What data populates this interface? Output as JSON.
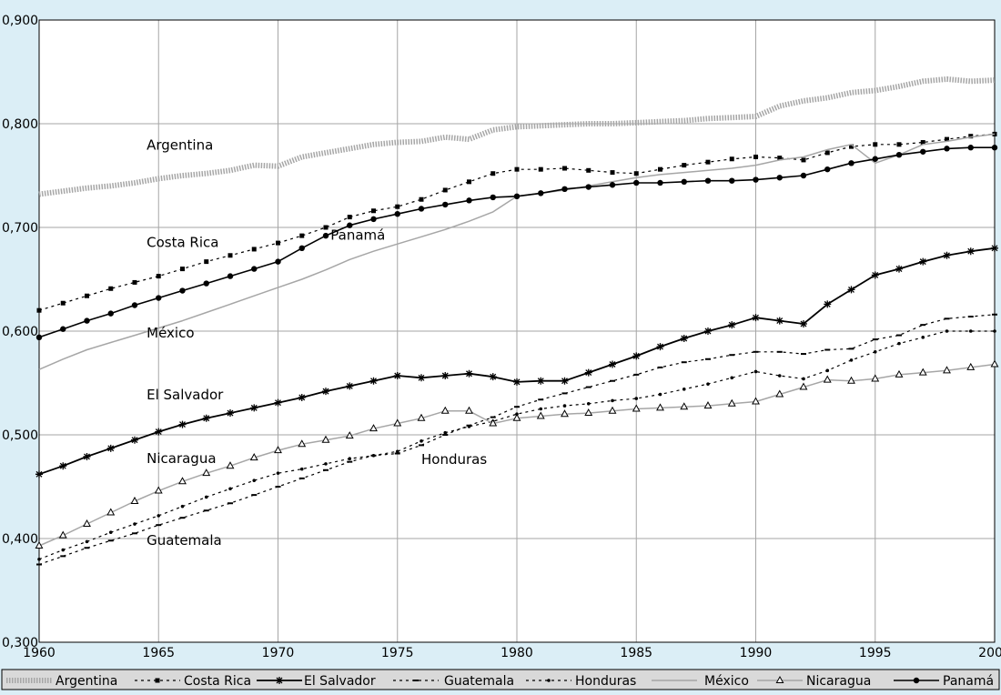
{
  "chart_data": {
    "type": "line",
    "title": "",
    "xlabel": "",
    "ylabel": "",
    "xlim": [
      1960,
      2000
    ],
    "ylim": [
      0.3,
      0.9
    ],
    "x_ticks": [
      1960,
      1965,
      1970,
      1975,
      1980,
      1985,
      1990,
      1995,
      2000
    ],
    "x_tick_labels": [
      "1960",
      "1965",
      "1970",
      "1975",
      "1980",
      "1985",
      "1990",
      "1995",
      "2000"
    ],
    "y_ticks": [
      0.3,
      0.4,
      0.5,
      0.6,
      0.7,
      0.8,
      0.9
    ],
    "y_tick_labels": [
      "0,300",
      "0,400",
      "0,500",
      "0,600",
      "0,700",
      "0,800",
      "0,900"
    ],
    "grid": true,
    "legend_position": "bottom",
    "x": [
      1960,
      1961,
      1962,
      1963,
      1964,
      1965,
      1966,
      1967,
      1968,
      1969,
      1970,
      1971,
      1972,
      1973,
      1974,
      1975,
      1976,
      1977,
      1978,
      1979,
      1980,
      1981,
      1982,
      1983,
      1984,
      1985,
      1986,
      1987,
      1988,
      1989,
      1990,
      1991,
      1992,
      1993,
      1994,
      1995,
      1996,
      1997,
      1998,
      1999,
      2000
    ],
    "series": [
      {
        "name": "Argentina",
        "style": "argentina",
        "color": "#a6a6a6",
        "values": [
          0.732,
          0.735,
          0.738,
          0.74,
          0.743,
          0.747,
          0.75,
          0.752,
          0.755,
          0.76,
          0.759,
          0.768,
          0.772,
          0.776,
          0.78,
          0.782,
          0.783,
          0.787,
          0.785,
          0.794,
          0.797,
          0.798,
          0.799,
          0.8,
          0.8,
          0.801,
          0.802,
          0.803,
          0.805,
          0.806,
          0.807,
          0.817,
          0.822,
          0.825,
          0.83,
          0.832,
          0.836,
          0.841,
          0.843,
          0.841,
          0.842
        ]
      },
      {
        "name": "Costa Rica",
        "style": "costarica",
        "color": "#000000",
        "values": [
          0.62,
          0.627,
          0.634,
          0.641,
          0.647,
          0.653,
          0.66,
          0.667,
          0.673,
          0.679,
          0.685,
          0.692,
          0.7,
          0.71,
          0.716,
          0.72,
          0.727,
          0.736,
          0.744,
          0.752,
          0.756,
          0.756,
          0.757,
          0.755,
          0.753,
          0.752,
          0.756,
          0.76,
          0.763,
          0.766,
          0.768,
          0.767,
          0.765,
          0.772,
          0.778,
          0.78,
          0.78,
          0.782,
          0.785,
          0.788,
          0.79
        ]
      },
      {
        "name": "El Salvador",
        "style": "elsalvador",
        "color": "#000000",
        "values": [
          0.462,
          0.47,
          0.479,
          0.487,
          0.495,
          0.503,
          0.51,
          0.516,
          0.521,
          0.526,
          0.531,
          0.536,
          0.542,
          0.547,
          0.552,
          0.557,
          0.555,
          0.557,
          0.559,
          0.556,
          0.551,
          0.552,
          0.552,
          0.56,
          0.568,
          0.576,
          0.585,
          0.593,
          0.6,
          0.606,
          0.613,
          0.61,
          0.607,
          0.626,
          0.64,
          0.654,
          0.66,
          0.667,
          0.673,
          0.677,
          0.68
        ]
      },
      {
        "name": "Guatemala",
        "style": "guatemala",
        "color": "#000000",
        "values": [
          0.375,
          0.383,
          0.391,
          0.398,
          0.405,
          0.413,
          0.42,
          0.427,
          0.434,
          0.442,
          0.45,
          0.458,
          0.466,
          0.474,
          0.48,
          0.482,
          0.49,
          0.5,
          0.509,
          0.517,
          0.527,
          0.534,
          0.54,
          0.546,
          0.552,
          0.558,
          0.565,
          0.57,
          0.573,
          0.577,
          0.58,
          0.58,
          0.578,
          0.582,
          0.583,
          0.592,
          0.596,
          0.606,
          0.612,
          0.614,
          0.616
        ]
      },
      {
        "name": "Honduras",
        "style": "honduras",
        "color": "#000000",
        "values": [
          0.38,
          0.389,
          0.397,
          0.406,
          0.414,
          0.422,
          0.431,
          0.44,
          0.448,
          0.456,
          0.463,
          0.467,
          0.472,
          0.477,
          0.48,
          0.484,
          0.494,
          0.502,
          0.508,
          0.513,
          0.52,
          0.525,
          0.528,
          0.53,
          0.533,
          0.535,
          0.539,
          0.544,
          0.549,
          0.555,
          0.561,
          0.557,
          0.554,
          0.562,
          0.572,
          0.58,
          0.588,
          0.594,
          0.6,
          0.6,
          0.6
        ]
      },
      {
        "name": "México",
        "style": "mexico",
        "color": "#a6a6a6",
        "values": [
          0.563,
          0.573,
          0.582,
          0.589,
          0.596,
          0.603,
          0.61,
          0.618,
          0.626,
          0.634,
          0.642,
          0.65,
          0.659,
          0.669,
          0.677,
          0.684,
          0.691,
          0.698,
          0.706,
          0.715,
          0.73,
          0.733,
          0.736,
          0.74,
          0.744,
          0.748,
          0.751,
          0.753,
          0.755,
          0.757,
          0.76,
          0.765,
          0.768,
          0.775,
          0.78,
          0.762,
          0.77,
          0.78,
          0.783,
          0.787,
          0.79
        ]
      },
      {
        "name": "Nicaragua",
        "style": "nicaragua",
        "color": "#000000",
        "values": [
          0.393,
          0.403,
          0.414,
          0.425,
          0.436,
          0.446,
          0.455,
          0.463,
          0.47,
          0.478,
          0.485,
          0.491,
          0.495,
          0.499,
          0.506,
          0.511,
          0.516,
          0.523,
          0.523,
          0.511,
          0.516,
          0.518,
          0.52,
          0.521,
          0.523,
          0.525,
          0.526,
          0.527,
          0.528,
          0.53,
          0.532,
          0.539,
          0.546,
          0.553,
          0.552,
          0.554,
          0.558,
          0.56,
          0.562,
          0.565,
          0.568
        ]
      },
      {
        "name": "Panamá",
        "style": "panama",
        "color": "#000000",
        "values": [
          0.594,
          0.602,
          0.61,
          0.617,
          0.625,
          0.632,
          0.639,
          0.646,
          0.653,
          0.66,
          0.667,
          0.68,
          0.692,
          0.702,
          0.708,
          0.713,
          0.718,
          0.722,
          0.726,
          0.729,
          0.73,
          0.733,
          0.737,
          0.739,
          0.741,
          0.743,
          0.743,
          0.744,
          0.745,
          0.745,
          0.746,
          0.748,
          0.75,
          0.756,
          0.762,
          0.766,
          0.77,
          0.773,
          0.776,
          0.777,
          0.777
        ]
      }
    ],
    "annotations": [
      {
        "text": "Argentina",
        "x": 1964.5,
        "y": 0.775
      },
      {
        "text": "Costa Rica",
        "x": 1964.5,
        "y": 0.681
      },
      {
        "text": "Panamá",
        "x": 1972.2,
        "y": 0.688
      },
      {
        "text": "México",
        "x": 1964.5,
        "y": 0.594
      },
      {
        "text": "El Salvador",
        "x": 1964.5,
        "y": 0.534
      },
      {
        "text": "Nicaragua",
        "x": 1964.5,
        "y": 0.473
      },
      {
        "text": "Honduras",
        "x": 1976.0,
        "y": 0.472
      },
      {
        "text": "Guatemala",
        "x": 1964.5,
        "y": 0.394
      }
    ]
  }
}
